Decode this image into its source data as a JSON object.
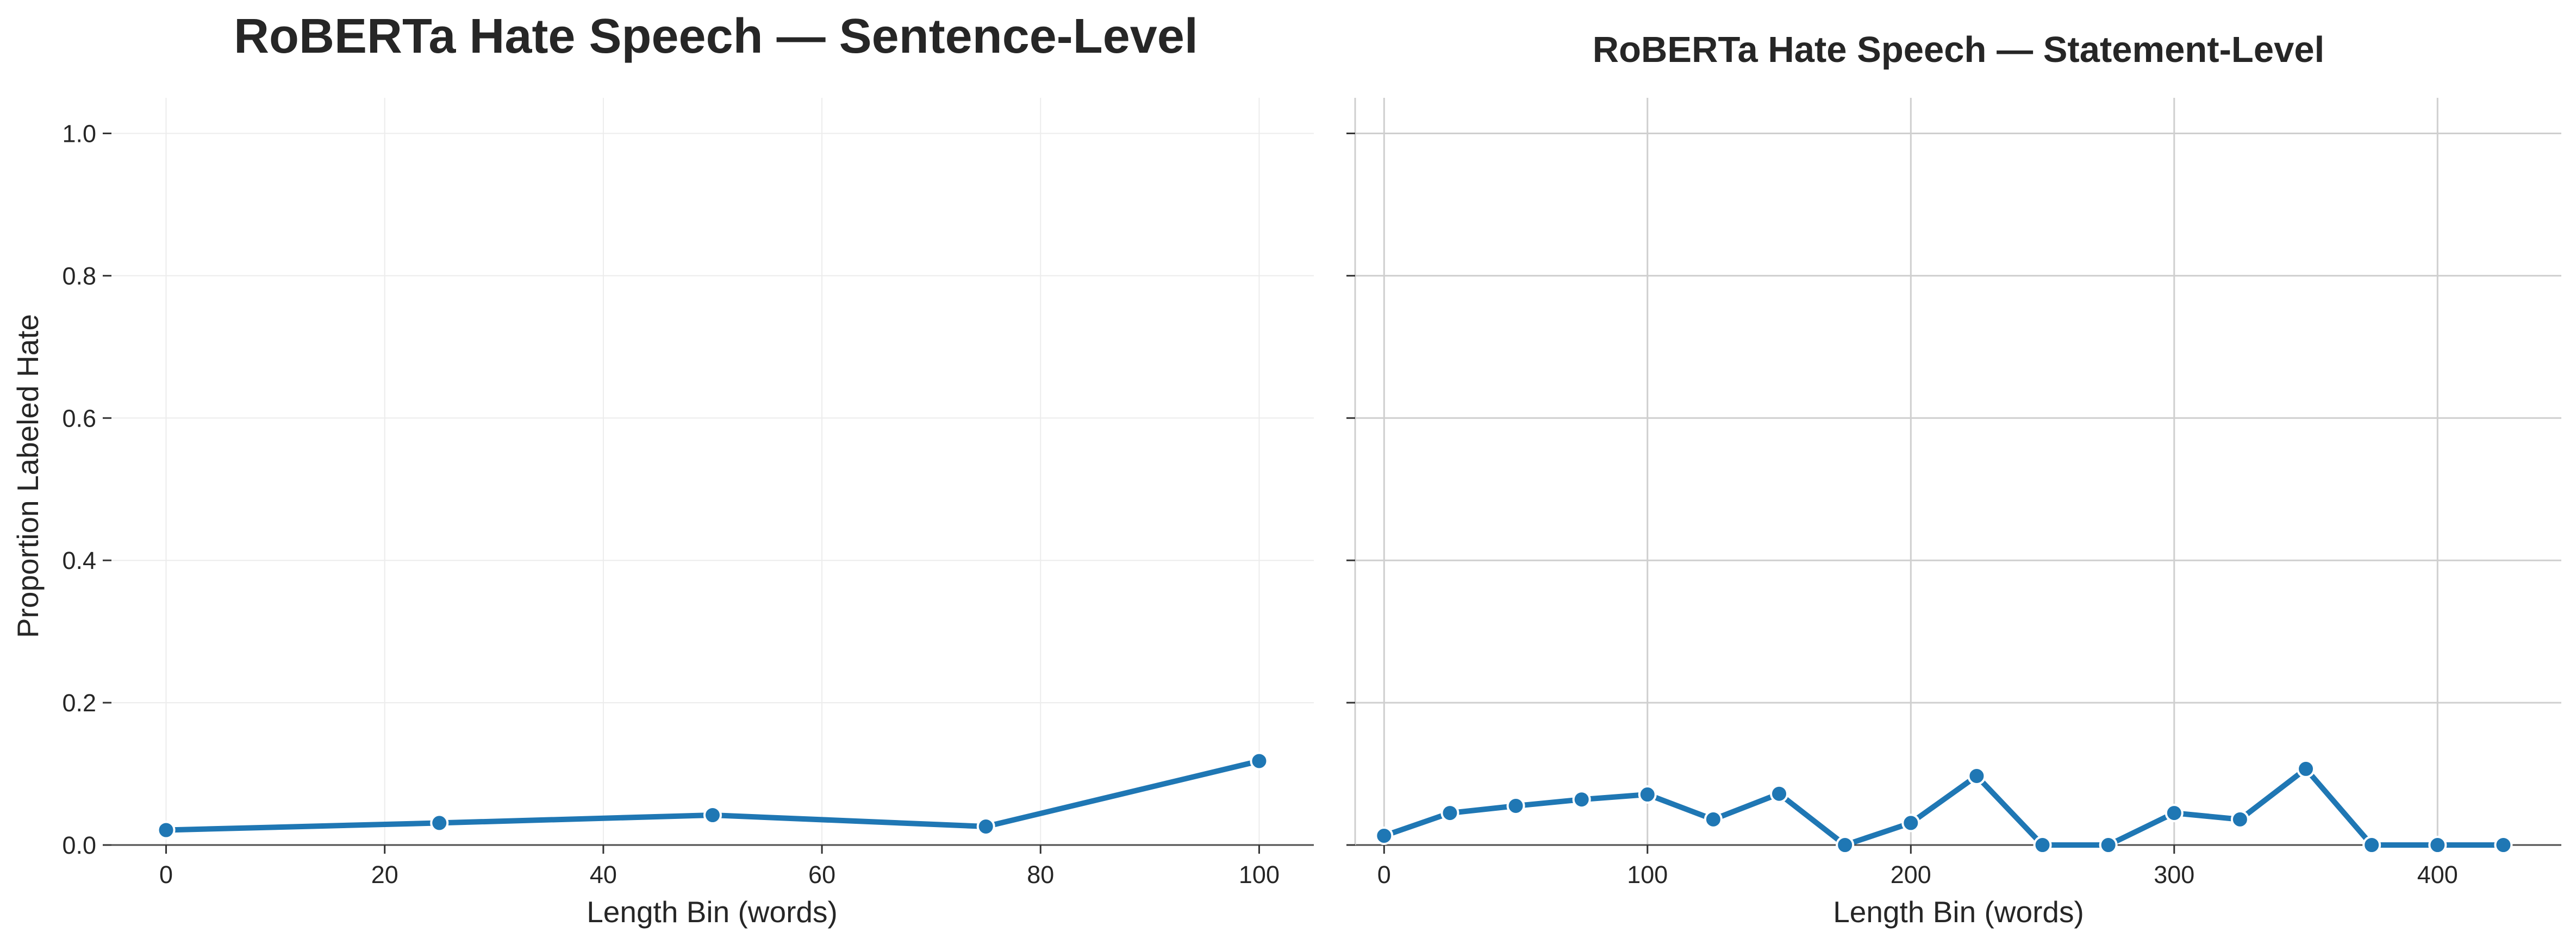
{
  "chart_data": [
    {
      "type": "line",
      "title": "RoBERTa Hate Speech — Sentence-Level",
      "xlabel": "Length Bin (words)",
      "ylabel": "Proportion Labeled Hate",
      "xlim": [
        -5,
        105
      ],
      "ylim": [
        0,
        1.05
      ],
      "xticks": [
        0,
        20,
        40,
        60,
        80,
        100
      ],
      "yticks": [
        0.0,
        0.2,
        0.4,
        0.6,
        0.8,
        1.0
      ],
      "grid": true,
      "series": [
        {
          "color": "#1f77b4",
          "x": [
            0,
            25,
            50,
            75,
            100
          ],
          "y": [
            0.021,
            0.031,
            0.042,
            0.026,
            0.118
          ]
        }
      ]
    },
    {
      "type": "line",
      "title": "RoBERTa Hate Speech — Statement-Level",
      "xlabel": "Length Bin (words)",
      "ylabel": "",
      "xlim": [
        -11,
        447
      ],
      "ylim": [
        0,
        1.05
      ],
      "xticks": [
        0,
        100,
        200,
        300,
        400
      ],
      "yticks": [
        0.0,
        0.2,
        0.4,
        0.6,
        0.8,
        1.0
      ],
      "show_ytick_labels": false,
      "grid": true,
      "series": [
        {
          "color": "#1f77b4",
          "x": [
            0,
            25,
            50,
            75,
            100,
            125,
            150,
            175,
            200,
            225,
            250,
            275,
            300,
            325,
            350,
            375,
            400,
            425
          ],
          "y": [
            0.013,
            0.045,
            0.055,
            0.064,
            0.071,
            0.036,
            0.072,
            0.0,
            0.031,
            0.097,
            0.0,
            0.0,
            0.045,
            0.036,
            0.107,
            0.0,
            0.0,
            0.0
          ]
        }
      ]
    }
  ]
}
